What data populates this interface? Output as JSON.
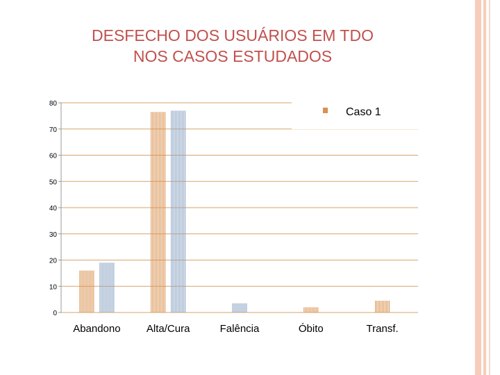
{
  "slide": {
    "title_line1": "DESFECHO DOS USUÁRIOS EM TDO",
    "title_line2": "NOS CASOS ESTUDADOS"
  },
  "chart_data": {
    "type": "bar",
    "categories": [
      "Abandono",
      "Alta/Cura",
      "Falência",
      "Óbito",
      "Transf."
    ],
    "series": [
      {
        "name": "Caso 1",
        "color": "#d9914f",
        "values": [
          16,
          76.5,
          null,
          2,
          4.5
        ]
      },
      {
        "name": "",
        "color": "#8aa3c2",
        "values": [
          19,
          77,
          3.5,
          null,
          null
        ]
      }
    ],
    "yticks": [
      0,
      10,
      20,
      30,
      40,
      50,
      60,
      70,
      80
    ],
    "ylim": [
      0,
      80
    ],
    "grid": true,
    "legend_position": "top-right"
  }
}
